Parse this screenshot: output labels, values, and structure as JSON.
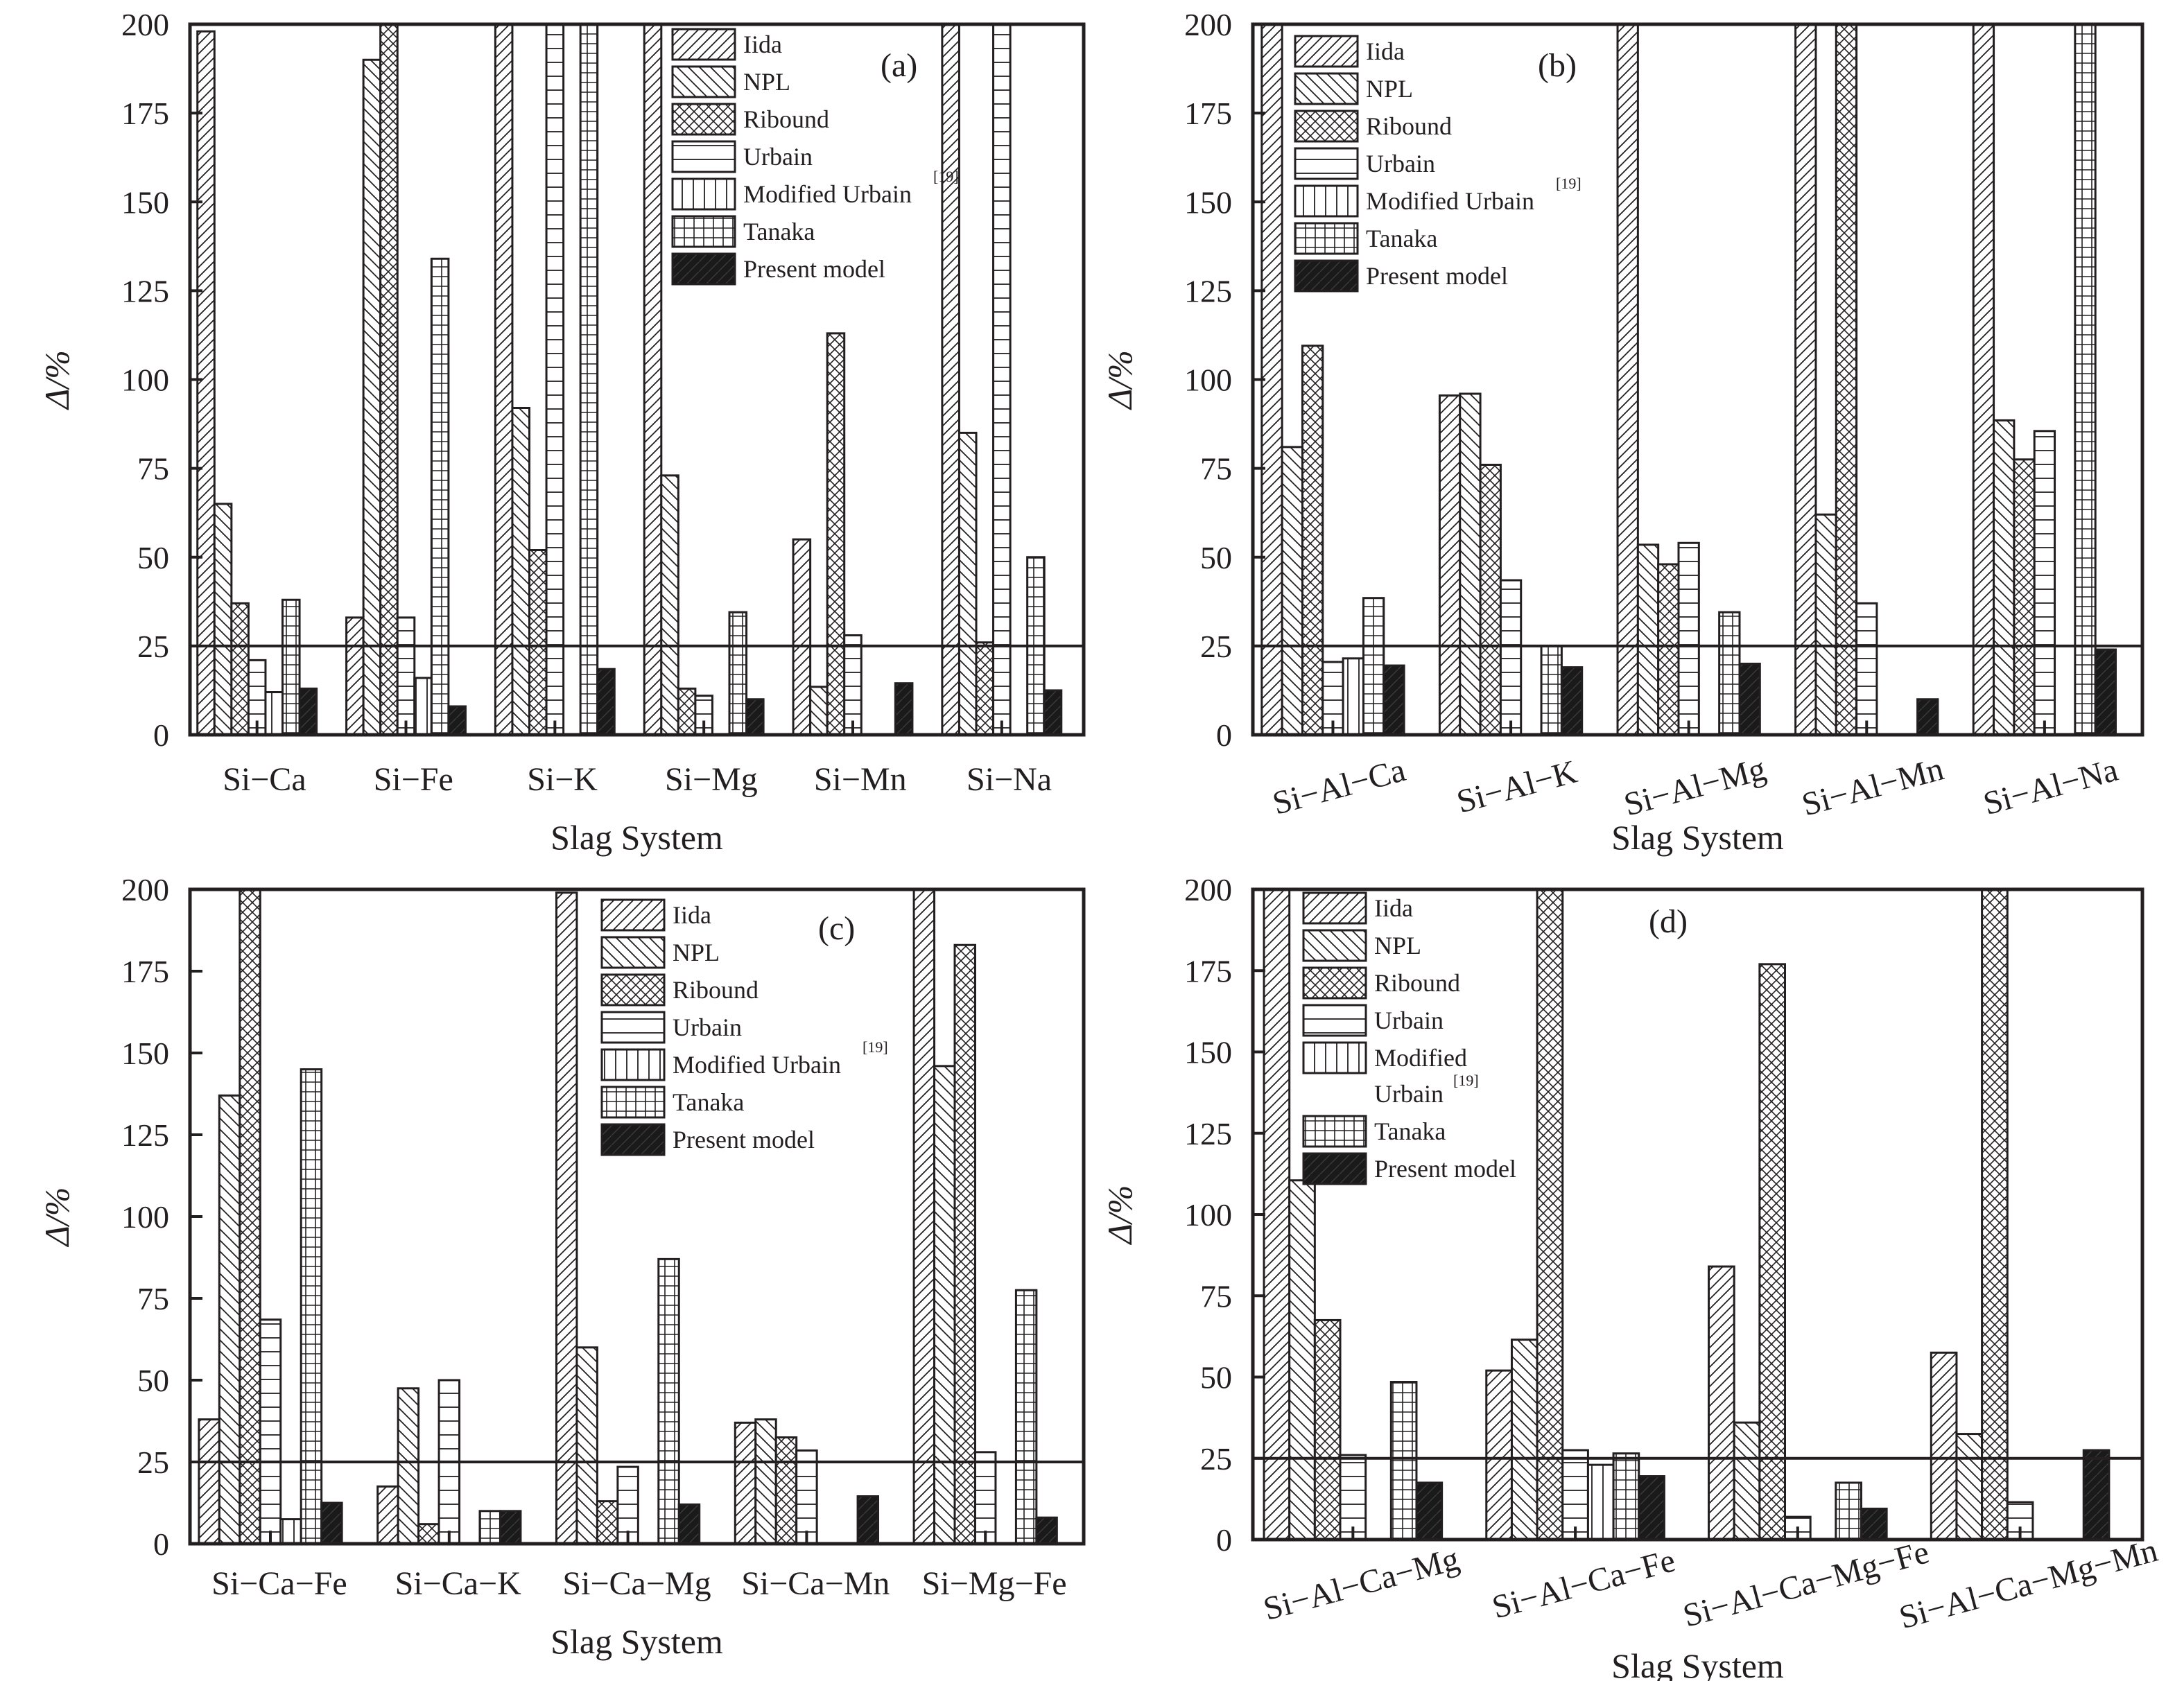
{
  "figure": {
    "legend_entries": [
      "Iida",
      "NPL",
      "Ribound",
      "Urbain",
      "Modified Urbain",
      "Tanaka",
      "Present model"
    ],
    "legend_superscript": "[19]",
    "reference_line_value": 25,
    "colors": {
      "ink": "#231f20",
      "present_fill": "#1a1a1a",
      "background": "#ffffff"
    }
  },
  "chart_data": [
    {
      "panel": "(a)",
      "type": "bar",
      "title": "",
      "xlabel": "Slag System",
      "ylabel": "Δ/%",
      "ylim": [
        0,
        200
      ],
      "yticks": [
        0,
        25,
        50,
        75,
        100,
        125,
        150,
        175,
        200
      ],
      "grid": false,
      "legend": "top-right",
      "reference_line": 25,
      "categories": [
        "Si−Ca",
        "Si−Fe",
        "Si−K",
        "Si−Mg",
        "Si−Mn",
        "Si−Na"
      ],
      "series": [
        {
          "name": "Iida",
          "values": [
            198,
            33,
            200,
            200,
            55,
            200
          ]
        },
        {
          "name": "NPL",
          "values": [
            65,
            190,
            92,
            73,
            13.5,
            85
          ]
        },
        {
          "name": "Ribound",
          "values": [
            37,
            200,
            52,
            13,
            113,
            26
          ]
        },
        {
          "name": "Urbain",
          "values": [
            21,
            33,
            200,
            11,
            28,
            200
          ]
        },
        {
          "name": "Modified Urbain",
          "values": [
            12,
            16,
            null,
            null,
            null,
            null
          ]
        },
        {
          "name": "Tanaka",
          "values": [
            38,
            134,
            200,
            34.5,
            null,
            50
          ]
        },
        {
          "name": "Present model",
          "values": [
            13,
            8,
            18.5,
            10,
            14.5,
            12.5
          ]
        }
      ]
    },
    {
      "panel": "(b)",
      "type": "bar",
      "title": "",
      "xlabel": "Slag System",
      "ylabel": "Δ/%",
      "ylim": [
        0,
        200
      ],
      "yticks": [
        0,
        25,
        50,
        75,
        100,
        125,
        150,
        175,
        200
      ],
      "grid": false,
      "legend": "top-left",
      "reference_line": 25,
      "categories": [
        "Si−Al−Ca",
        "Si−Al−K",
        "Si−Al−Mg",
        "Si−Al−Mn",
        "Si−Al−Na"
      ],
      "series": [
        {
          "name": "Iida",
          "values": [
            200,
            95.5,
            200,
            200,
            200
          ]
        },
        {
          "name": "NPL",
          "values": [
            81,
            96,
            53.5,
            62,
            88.5
          ]
        },
        {
          "name": "Ribound",
          "values": [
            109.5,
            76,
            48,
            200,
            77.5
          ]
        },
        {
          "name": "Urbain",
          "values": [
            20.5,
            43.5,
            54,
            37,
            85.5
          ]
        },
        {
          "name": "Modified Urbain",
          "values": [
            21.5,
            null,
            null,
            null,
            null
          ]
        },
        {
          "name": "Tanaka",
          "values": [
            38.5,
            25,
            34.5,
            null,
            200
          ]
        },
        {
          "name": "Present model",
          "values": [
            19.5,
            19,
            20,
            10,
            24
          ]
        }
      ]
    },
    {
      "panel": "(c)",
      "type": "bar",
      "title": "",
      "xlabel": "Slag System",
      "ylabel": "Δ/%",
      "ylim": [
        0,
        200
      ],
      "yticks": [
        0,
        25,
        50,
        75,
        100,
        125,
        150,
        175,
        200
      ],
      "grid": false,
      "legend": "top-center",
      "reference_line": 25,
      "categories": [
        "Si−Ca−Fe",
        "Si−Ca−K",
        "Si−Ca−Mg",
        "Si−Ca−Mn",
        "Si−Mg−Fe"
      ],
      "series": [
        {
          "name": "Iida",
          "values": [
            38,
            17.5,
            199,
            37,
            200
          ]
        },
        {
          "name": "NPL",
          "values": [
            137,
            47.5,
            60,
            38,
            146
          ]
        },
        {
          "name": "Ribound",
          "values": [
            200,
            6,
            13,
            32.5,
            183
          ]
        },
        {
          "name": "Urbain",
          "values": [
            68.5,
            50,
            23.5,
            28.5,
            28
          ]
        },
        {
          "name": "Modified Urbain",
          "values": [
            7.5,
            null,
            null,
            null,
            null
          ]
        },
        {
          "name": "Tanaka",
          "values": [
            145,
            10,
            87,
            null,
            77.5
          ]
        },
        {
          "name": "Present model",
          "values": [
            12.5,
            10,
            12,
            14.5,
            8
          ]
        }
      ]
    },
    {
      "panel": "(d)",
      "type": "bar",
      "title": "",
      "xlabel": "Slag System",
      "ylabel": "Δ/%",
      "ylim": [
        0,
        200
      ],
      "yticks": [
        0,
        25,
        50,
        75,
        100,
        125,
        150,
        175,
        200
      ],
      "grid": false,
      "legend": "top-left",
      "legend_wrap_modified_urbain": [
        "Modified",
        "Urbain"
      ],
      "reference_line": 25,
      "categories": [
        "Si−Al−Ca−Mg",
        "Si−Al−Ca−Fe",
        "Si−Al−Ca−Mg−Fe",
        "Si−Al−Ca−Mg−Mn"
      ],
      "series": [
        {
          "name": "Iida",
          "values": [
            200,
            52,
            84,
            57.5
          ]
        },
        {
          "name": "NPL",
          "values": [
            110.5,
            61.5,
            36,
            32.5
          ]
        },
        {
          "name": "Ribound",
          "values": [
            67.5,
            200,
            177,
            200
          ]
        },
        {
          "name": "Urbain",
          "values": [
            26,
            27.5,
            7,
            11.5
          ]
        },
        {
          "name": "Modified Urbain",
          "values": [
            null,
            23,
            null,
            null
          ]
        },
        {
          "name": "Tanaka",
          "values": [
            48.5,
            26.5,
            17.5,
            null
          ]
        },
        {
          "name": "Present model",
          "values": [
            17.5,
            19.5,
            9.5,
            27.5
          ]
        }
      ]
    }
  ]
}
